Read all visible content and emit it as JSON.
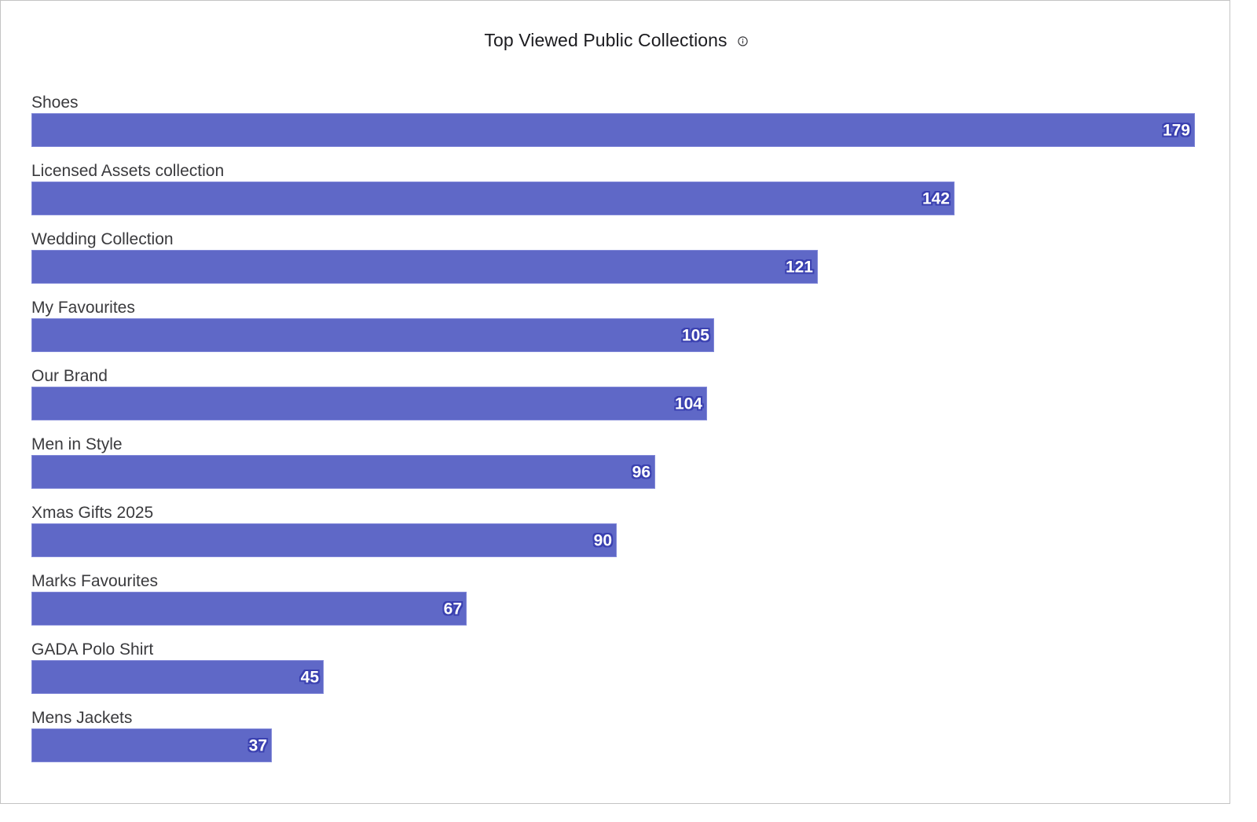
{
  "header": {
    "title": "Top Viewed Public Collections",
    "info_icon": "info-circle-icon"
  },
  "colors": {
    "bar_fill": "#5f68c7",
    "bar_border": "#8188d8",
    "value_outline": "#3a40b0",
    "value_text": "#ffffff",
    "label_text": "#3a3a3d",
    "frame_border": "#c4c4c4"
  },
  "chart_data": {
    "type": "bar",
    "orientation": "horizontal",
    "title": "Top Viewed Public Collections",
    "xlabel": "",
    "ylabel": "",
    "grid": false,
    "legend": null,
    "xlim": [
      0,
      179
    ],
    "categories": [
      "Shoes",
      "Licensed Assets collection",
      "Wedding Collection",
      "My Favourites",
      "Our Brand",
      "Men in Style",
      "Xmas Gifts 2025",
      "Marks Favourites",
      "GADA Polo Shirt",
      "Mens Jackets"
    ],
    "values": [
      179,
      142,
      121,
      105,
      104,
      96,
      90,
      67,
      45,
      37
    ],
    "data_labels": true
  },
  "rows": [
    {
      "label": "Shoes",
      "value": "179"
    },
    {
      "label": "Licensed Assets collection",
      "value": "142"
    },
    {
      "label": "Wedding Collection",
      "value": "121"
    },
    {
      "label": "My Favourites",
      "value": "105"
    },
    {
      "label": "Our Brand",
      "value": "104"
    },
    {
      "label": "Men in Style",
      "value": "96"
    },
    {
      "label": "Xmas Gifts 2025",
      "value": "90"
    },
    {
      "label": "Marks Favourites",
      "value": "67"
    },
    {
      "label": "GADA Polo Shirt",
      "value": "45"
    },
    {
      "label": "Mens Jackets",
      "value": "37"
    }
  ]
}
